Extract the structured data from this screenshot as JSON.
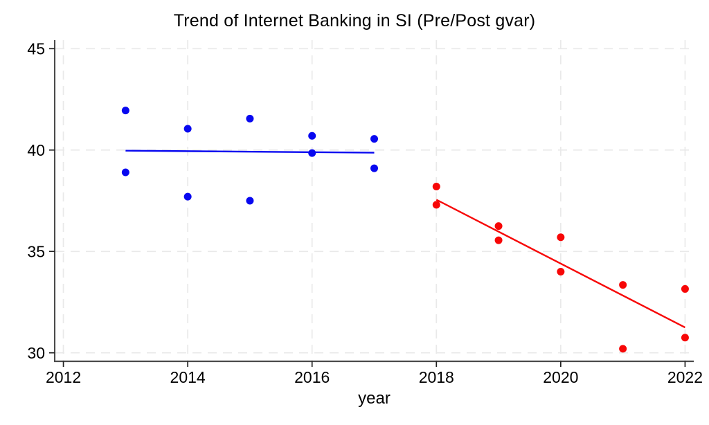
{
  "page": {
    "background": "#ffffff"
  },
  "chart_data": {
    "type": "scatter",
    "title": "Trend of Internet Banking in SI (Pre/Post gvar)",
    "xlabel": "year",
    "ylabel": "",
    "xlim": [
      2011.86,
      2022.14
    ],
    "ylim": [
      29.58,
      45.42
    ],
    "x_ticks": [
      2012,
      2014,
      2016,
      2018,
      2020,
      2022
    ],
    "y_ticks": [
      30,
      35,
      40,
      45
    ],
    "grid": {
      "show": true,
      "style": "dashed",
      "color": "#e9e9e9",
      "which": "both-axes-at-ticks"
    },
    "legend_position": "none",
    "axis_color": "#4a4a4a",
    "tick_color": "#222222",
    "text_color": "#000000",
    "marker_radius_px": 5.5,
    "series": [
      {
        "name": "pre-gvar-scatter",
        "kind": "scatter",
        "color": "#0808f0",
        "points": [
          [
            2013,
            41.95
          ],
          [
            2013,
            38.9
          ],
          [
            2014,
            41.05
          ],
          [
            2014,
            37.7
          ],
          [
            2015,
            41.55
          ],
          [
            2015,
            37.5
          ],
          [
            2016,
            40.7
          ],
          [
            2016,
            39.85
          ],
          [
            2017,
            40.55
          ],
          [
            2017,
            39.1
          ]
        ]
      },
      {
        "name": "pre-gvar-fit-line",
        "kind": "line",
        "color": "#0808f0",
        "points": [
          [
            2013,
            39.97
          ],
          [
            2017,
            39.87
          ]
        ]
      },
      {
        "name": "post-gvar-scatter",
        "kind": "scatter",
        "color": "#f70707",
        "points": [
          [
            2018,
            38.2
          ],
          [
            2018,
            37.3
          ],
          [
            2019,
            36.25
          ],
          [
            2019,
            35.55
          ],
          [
            2020,
            35.7
          ],
          [
            2020,
            34.0
          ],
          [
            2021,
            33.35
          ],
          [
            2021,
            30.2
          ],
          [
            2022,
            33.15
          ],
          [
            2022,
            30.75
          ]
        ]
      },
      {
        "name": "post-gvar-fit-line",
        "kind": "line",
        "color": "#f70707",
        "points": [
          [
            2018,
            37.55
          ],
          [
            2022,
            31.25
          ]
        ]
      }
    ]
  }
}
